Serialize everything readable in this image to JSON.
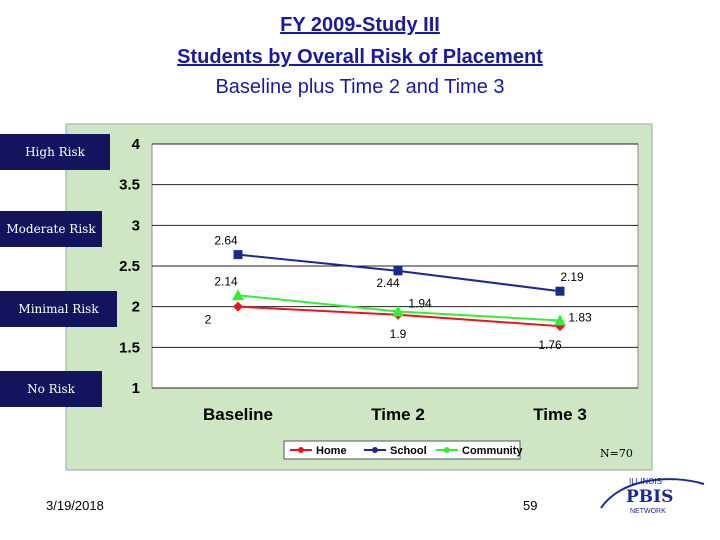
{
  "header": {
    "title_line1": "FY 2009-Study III",
    "title_line2": " Students by Overall Risk of Placement",
    "title_line3": "Baseline plus Time 2 and Time 3"
  },
  "risk_labels": [
    "High Risk",
    "Moderate Risk",
    "Minimal Risk",
    "No Risk"
  ],
  "footer": {
    "date": "3/19/2018",
    "page": "59",
    "n_label": "N=70",
    "logo_top": "ILLINOIS",
    "logo_main": "PBIS",
    "logo_bottom": "NETWORK"
  },
  "colors": {
    "home": "#e8141e",
    "school": "#1a2a94",
    "community": "#33ee33",
    "chart_bg": "#cfe6c5",
    "risk_box": "#13135e",
    "title": "#1a1aa0"
  },
  "chart_data": {
    "type": "line",
    "categories": [
      "Baseline",
      "Time 2",
      "Time 3"
    ],
    "series": [
      {
        "name": "Home",
        "values": [
          2,
          1.9,
          1.76
        ],
        "labels": [
          "2",
          "1.9",
          "1.76"
        ]
      },
      {
        "name": "School",
        "values": [
          2.64,
          2.44,
          2.19
        ],
        "labels": [
          "2.64",
          "2.44",
          "2.19"
        ]
      },
      {
        "name": "Community",
        "values": [
          2.14,
          1.94,
          1.83
        ],
        "labels": [
          "2.14",
          "1.94",
          "1.83"
        ]
      }
    ],
    "ylim": [
      1,
      4
    ],
    "yticks": [
      "1",
      "1.5",
      "2",
      "2.5",
      "3",
      "3.5",
      "4"
    ],
    "grid": true,
    "legend_position": "bottom"
  }
}
